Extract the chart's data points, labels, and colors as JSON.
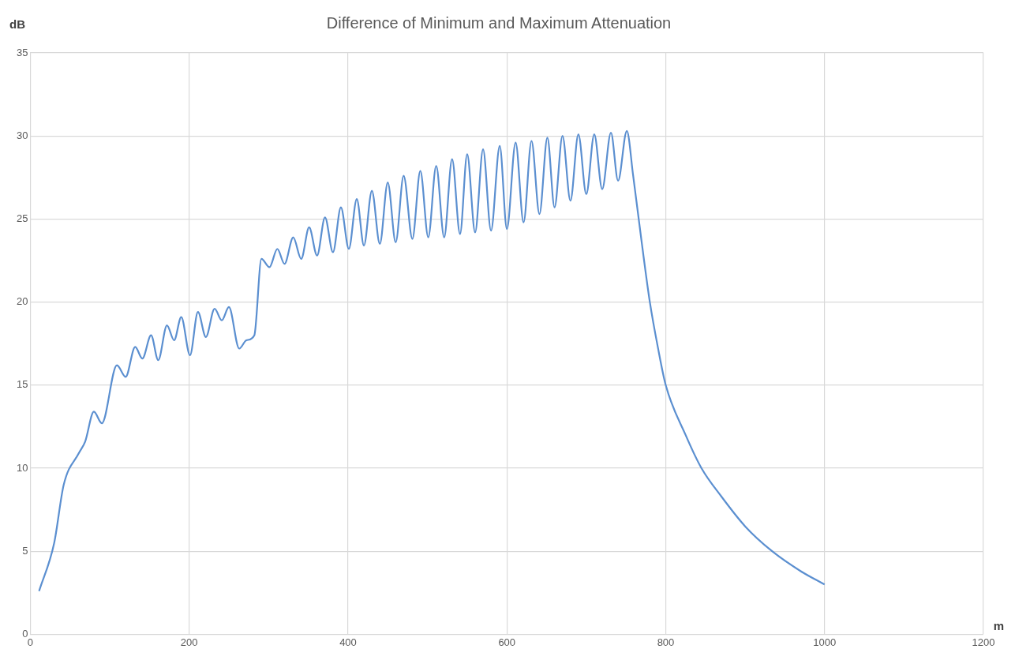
{
  "chart_data": {
    "type": "line",
    "title": "Difference of Minimum and Maximum Attenuation",
    "xlabel": "m",
    "ylabel": "dB",
    "x": [
      11,
      30,
      42,
      61,
      69,
      80,
      90,
      109,
      120,
      132,
      141,
      152,
      161,
      172,
      181,
      190,
      201,
      211,
      221,
      232,
      241,
      250,
      263,
      272,
      282,
      291,
      301,
      311,
      320,
      331,
      341,
      351,
      361,
      371,
      381,
      391,
      401,
      411,
      420,
      430,
      440,
      450,
      460,
      470,
      481,
      491,
      501,
      511,
      521,
      531,
      541,
      550,
      560,
      570,
      580,
      591,
      600,
      611,
      621,
      631,
      641,
      651,
      660,
      670,
      680,
      690,
      700,
      710,
      720,
      731,
      740,
      751,
      759,
      770,
      780,
      790,
      800,
      825,
      845,
      870,
      900,
      934,
      970,
      1000
    ],
    "series": [
      {
        "color": "#5b8fd0",
        "values": [
          2.6,
          5.5,
          9.0,
          10.9,
          11.6,
          13.4,
          12.7,
          16.2,
          15.5,
          17.3,
          16.6,
          18.0,
          16.5,
          18.6,
          17.7,
          19.1,
          16.8,
          19.4,
          17.9,
          19.6,
          18.9,
          19.7,
          17.2,
          17.7,
          18.0,
          22.6,
          22.1,
          23.2,
          22.3,
          23.9,
          22.6,
          24.5,
          22.8,
          25.1,
          23.0,
          25.7,
          23.2,
          26.2,
          23.4,
          26.7,
          23.5,
          27.2,
          23.6,
          27.6,
          23.8,
          27.9,
          23.9,
          28.2,
          23.9,
          28.6,
          24.1,
          28.9,
          24.2,
          29.2,
          24.3,
          29.4,
          24.4,
          29.6,
          24.8,
          29.7,
          25.3,
          29.9,
          25.7,
          30.0,
          26.1,
          30.1,
          26.5,
          30.1,
          26.8,
          30.2,
          27.3,
          30.3,
          27.6,
          23.5,
          20.0,
          17.3,
          15.0,
          12.0,
          10.0,
          8.3,
          6.5,
          5.0,
          3.8,
          3.0
        ]
      }
    ],
    "xlim": [
      0,
      1200
    ],
    "xticks": [
      0,
      200,
      400,
      600,
      800,
      1000,
      1200
    ],
    "ylim": [
      0,
      35
    ],
    "yticks": [
      0,
      5,
      10,
      15,
      20,
      25,
      30,
      35
    ],
    "grid": true,
    "legend": false,
    "marker": "none",
    "line_style": "solid"
  }
}
